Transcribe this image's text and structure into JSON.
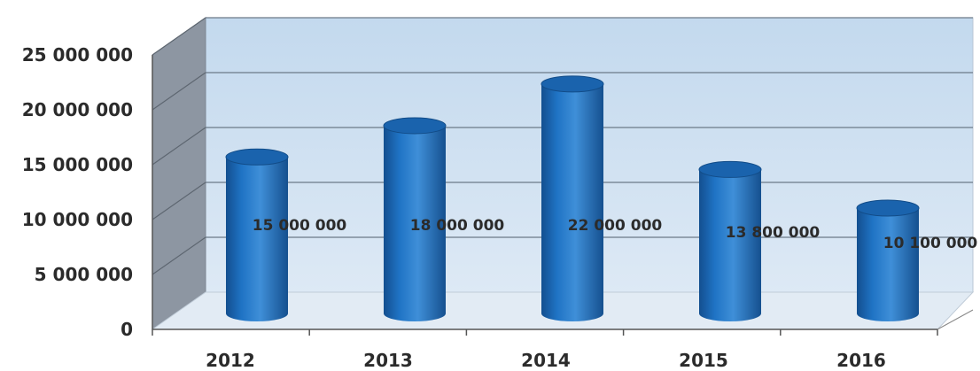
{
  "chart_data": {
    "type": "bar",
    "style": "3d-cylinder",
    "categories": [
      "2012",
      "2013",
      "2014",
      "2015",
      "2016"
    ],
    "values": [
      15000000,
      18000000,
      22000000,
      13800000,
      10100000
    ],
    "data_labels": [
      "15 000 000",
      "18 000 000",
      "22 000 000",
      "13 800 000",
      "10 100 000"
    ],
    "y_ticks": [
      "0",
      "5 000 000",
      "10 000 000",
      "15 000 000",
      "20 000 000",
      "25 000 000"
    ],
    "ylim": [
      0,
      25000000
    ],
    "grid": true,
    "legend": "none",
    "title": "",
    "xlabel": "",
    "ylabel": ""
  },
  "colors": {
    "bar": "#1f73c4",
    "bar_dark": "#134f8f",
    "bar_light": "#5aa6e6",
    "back_wall": "#d2e4f4",
    "side_wall": "#8d96a2",
    "floor": "#e2ebf4",
    "gridline": "#6c7a88"
  }
}
